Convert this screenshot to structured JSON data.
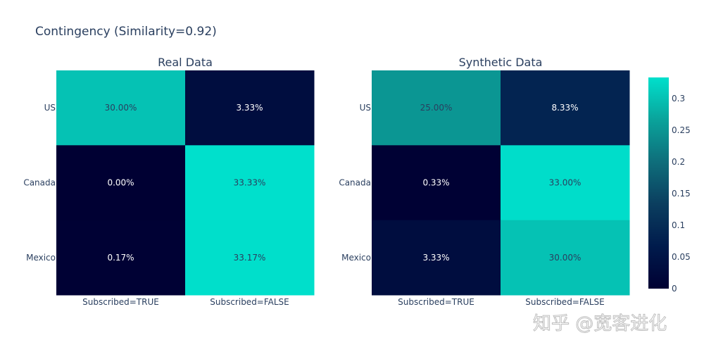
{
  "title": "Contingency (Similarity=0.92)",
  "watermark": "知乎 @宽客进化",
  "colorscale": [
    "#000033",
    "#001b4c",
    "#0b3e5f",
    "#0e6e7b",
    "#0aa39b",
    "#00e0cc"
  ],
  "chart_data": [
    {
      "type": "heatmap",
      "title": "Real Data",
      "x": [
        "Subscribed=TRUE",
        "Subscribed=FALSE"
      ],
      "y": [
        "US",
        "Canada",
        "Mexico"
      ],
      "z": [
        [
          0.3,
          0.0333
        ],
        [
          0.0,
          0.3333
        ],
        [
          0.0017,
          0.3317
        ]
      ],
      "text": [
        [
          "30.00%",
          "3.33%"
        ],
        [
          "0.00%",
          "33.33%"
        ],
        [
          "0.17%",
          "33.17%"
        ]
      ]
    },
    {
      "type": "heatmap",
      "title": "Synthetic Data",
      "x": [
        "Subscribed=TRUE",
        "Subscribed=FALSE"
      ],
      "y": [
        "US",
        "Canada",
        "Mexico"
      ],
      "z": [
        [
          0.25,
          0.0833
        ],
        [
          0.0033,
          0.33
        ],
        [
          0.0333,
          0.3
        ]
      ],
      "text": [
        [
          "25.00%",
          "8.33%"
        ],
        [
          "0.33%",
          "33.00%"
        ],
        [
          "3.33%",
          "30.00%"
        ]
      ]
    }
  ],
  "colorbar": {
    "min": 0,
    "max": 0.3333,
    "ticks": [
      "0",
      "0.05",
      "0.1",
      "0.15",
      "0.2",
      "0.25",
      "0.3"
    ],
    "tick_values": [
      0,
      0.05,
      0.1,
      0.15,
      0.2,
      0.25,
      0.3
    ]
  }
}
